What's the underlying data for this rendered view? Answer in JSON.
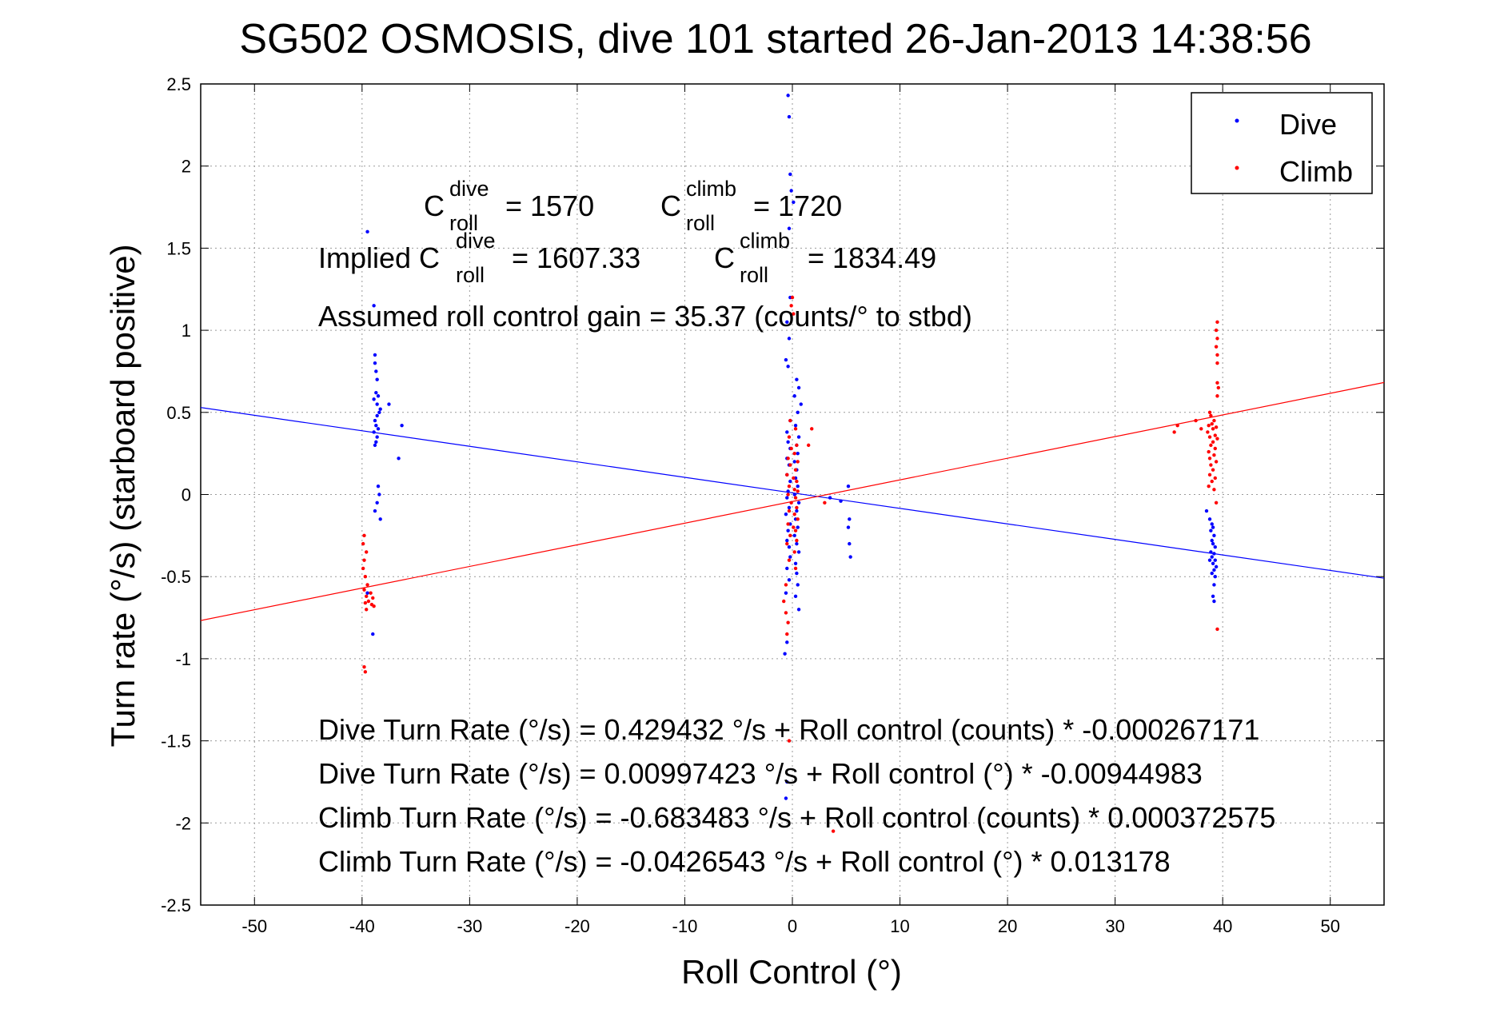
{
  "chart_data": {
    "type": "scatter",
    "title": "SG502 OSMOSIS, dive 101 started 26-Jan-2013 14:38:56",
    "xlabel": "Roll Control (°)",
    "ylabel": "Turn rate (°/s)  (starboard positive)",
    "xlim": [
      -55,
      55
    ],
    "ylim": [
      -2.5,
      2.5
    ],
    "xticks": [
      -50,
      -40,
      -30,
      -20,
      -10,
      0,
      10,
      20,
      30,
      40,
      50
    ],
    "yticks": [
      -2.5,
      -2,
      -1.5,
      -1,
      -0.5,
      0,
      0.5,
      1,
      1.5,
      2,
      2.5
    ],
    "xtick_labels": [
      "-50",
      "-40",
      "-30",
      "-20",
      "-10",
      "0",
      "10",
      "20",
      "30",
      "40",
      "50"
    ],
    "ytick_labels": [
      "-2.5",
      "-2",
      "-1.5",
      "-1",
      "-0.5",
      "0",
      "0.5",
      "1",
      "1.5",
      "2",
      "2.5"
    ],
    "grid": true,
    "legend": {
      "placement": "top-right",
      "entries": [
        "Dive",
        "Climb"
      ]
    },
    "colors": {
      "Dive": "#0000ff",
      "Climb": "#ff0000"
    },
    "series": [
      {
        "name": "Dive",
        "color": "#0000ff",
        "points": [
          [
            -39.5,
            1.6
          ],
          [
            -38.9,
            1.15
          ],
          [
            -38.8,
            0.85
          ],
          [
            -38.8,
            0.8
          ],
          [
            -38.7,
            0.75
          ],
          [
            -38.6,
            0.7
          ],
          [
            -38.7,
            0.62
          ],
          [
            -38.5,
            0.6
          ],
          [
            -38.9,
            0.58
          ],
          [
            -38.6,
            0.55
          ],
          [
            -38.3,
            0.52
          ],
          [
            -38.4,
            0.5
          ],
          [
            -38.6,
            0.48
          ],
          [
            -38.8,
            0.45
          ],
          [
            -38.7,
            0.42
          ],
          [
            -38.5,
            0.4
          ],
          [
            -38.9,
            0.38
          ],
          [
            -38.6,
            0.35
          ],
          [
            -38.7,
            0.32
          ],
          [
            -38.8,
            0.3
          ],
          [
            -37.5,
            0.55
          ],
          [
            -36.3,
            0.42
          ],
          [
            -36.6,
            0.22
          ],
          [
            -38.5,
            0.05
          ],
          [
            -38.4,
            0.0
          ],
          [
            -38.6,
            -0.05
          ],
          [
            -38.8,
            -0.1
          ],
          [
            -38.3,
            -0.15
          ],
          [
            -39.5,
            -0.6
          ],
          [
            -39.0,
            -0.85
          ],
          [
            -0.4,
            2.43
          ],
          [
            -0.3,
            2.3
          ],
          [
            -0.2,
            1.95
          ],
          [
            -0.1,
            1.85
          ],
          [
            0.1,
            1.78
          ],
          [
            -0.3,
            1.62
          ],
          [
            -0.2,
            1.2
          ],
          [
            -0.5,
            1.05
          ],
          [
            -0.3,
            0.95
          ],
          [
            -0.6,
            0.82
          ],
          [
            -0.4,
            0.78
          ],
          [
            0.4,
            0.7
          ],
          [
            0.6,
            0.65
          ],
          [
            0.2,
            0.6
          ],
          [
            0.8,
            0.55
          ],
          [
            0.5,
            0.5
          ],
          [
            -0.2,
            0.45
          ],
          [
            0.3,
            0.42
          ],
          [
            -0.5,
            0.38
          ],
          [
            0.6,
            0.35
          ],
          [
            -0.4,
            0.32
          ],
          [
            0.4,
            0.3
          ],
          [
            -0.2,
            0.28
          ],
          [
            0.5,
            0.25
          ],
          [
            -0.5,
            0.22
          ],
          [
            0.2,
            0.2
          ],
          [
            -0.3,
            0.18
          ],
          [
            0.4,
            0.15
          ],
          [
            -0.5,
            0.12
          ],
          [
            0.3,
            0.1
          ],
          [
            -0.2,
            0.08
          ],
          [
            0.5,
            0.05
          ],
          [
            -0.4,
            0.02
          ],
          [
            0.2,
            0.0
          ],
          [
            -0.5,
            -0.02
          ],
          [
            0.6,
            -0.05
          ],
          [
            -0.3,
            -0.08
          ],
          [
            0.4,
            -0.1
          ],
          [
            -0.6,
            -0.12
          ],
          [
            0.3,
            -0.15
          ],
          [
            -0.2,
            -0.18
          ],
          [
            0.5,
            -0.2
          ],
          [
            -0.4,
            -0.22
          ],
          [
            0.2,
            -0.25
          ],
          [
            -0.5,
            -0.28
          ],
          [
            0.4,
            -0.3
          ],
          [
            -0.3,
            -0.32
          ],
          [
            0.6,
            -0.35
          ],
          [
            -0.2,
            -0.38
          ],
          [
            0.3,
            -0.42
          ],
          [
            -0.5,
            -0.45
          ],
          [
            0.4,
            -0.48
          ],
          [
            -0.3,
            -0.52
          ],
          [
            0.5,
            -0.55
          ],
          [
            -0.6,
            -0.6
          ],
          [
            0.3,
            -0.62
          ],
          [
            0.6,
            -0.7
          ],
          [
            -0.5,
            -0.9
          ],
          [
            -0.7,
            -0.97
          ],
          [
            -0.5,
            -1.75
          ],
          [
            -0.6,
            -1.85
          ],
          [
            3.5,
            -0.02
          ],
          [
            4.5,
            -0.04
          ],
          [
            5.2,
            0.05
          ],
          [
            5.3,
            -0.15
          ],
          [
            5.2,
            -0.2
          ],
          [
            5.3,
            -0.3
          ],
          [
            5.4,
            -0.38
          ],
          [
            38.5,
            -0.1
          ],
          [
            38.8,
            -0.15
          ],
          [
            39.0,
            -0.18
          ],
          [
            39.1,
            -0.2
          ],
          [
            38.9,
            -0.22
          ],
          [
            39.2,
            -0.25
          ],
          [
            39.0,
            -0.28
          ],
          [
            39.1,
            -0.3
          ],
          [
            39.3,
            -0.32
          ],
          [
            38.9,
            -0.35
          ],
          [
            39.2,
            -0.36
          ],
          [
            39.0,
            -0.38
          ],
          [
            39.3,
            -0.4
          ],
          [
            39.1,
            -0.42
          ],
          [
            38.8,
            -0.4
          ],
          [
            39.4,
            -0.44
          ],
          [
            39.2,
            -0.46
          ],
          [
            39.0,
            -0.48
          ],
          [
            39.3,
            -0.5
          ],
          [
            39.2,
            -0.55
          ],
          [
            39.1,
            -0.62
          ],
          [
            39.2,
            -0.65
          ]
        ]
      },
      {
        "name": "Climb",
        "color": "#ff0000",
        "points": [
          [
            -39.8,
            -0.25
          ],
          [
            -39.9,
            -0.3
          ],
          [
            -39.6,
            -0.35
          ],
          [
            -39.8,
            -0.4
          ],
          [
            -39.9,
            -0.45
          ],
          [
            -39.7,
            -0.5
          ],
          [
            -39.5,
            -0.55
          ],
          [
            -39.8,
            -0.58
          ],
          [
            -39.2,
            -0.6
          ],
          [
            -39.6,
            -0.62
          ],
          [
            -39.0,
            -0.63
          ],
          [
            -39.4,
            -0.65
          ],
          [
            -39.7,
            -0.66
          ],
          [
            -39.1,
            -0.67
          ],
          [
            -38.9,
            -0.68
          ],
          [
            -39.6,
            -0.7
          ],
          [
            -39.8,
            -1.05
          ],
          [
            -39.7,
            -1.08
          ],
          [
            0.0,
            1.2
          ],
          [
            -0.1,
            1.15
          ],
          [
            0.1,
            1.1
          ],
          [
            -0.2,
            0.45
          ],
          [
            0.3,
            0.4
          ],
          [
            -0.3,
            0.35
          ],
          [
            0.4,
            0.3
          ],
          [
            -0.1,
            0.28
          ],
          [
            0.2,
            0.25
          ],
          [
            -0.4,
            0.22
          ],
          [
            0.5,
            0.2
          ],
          [
            -0.2,
            0.18
          ],
          [
            0.3,
            0.15
          ],
          [
            -0.5,
            0.12
          ],
          [
            0.1,
            0.1
          ],
          [
            0.4,
            0.08
          ],
          [
            -0.3,
            0.05
          ],
          [
            0.2,
            0.03
          ],
          [
            0.5,
            0.02
          ],
          [
            -0.4,
            0.0
          ],
          [
            0.3,
            -0.02
          ],
          [
            -0.1,
            -0.05
          ],
          [
            0.4,
            -0.08
          ],
          [
            -0.3,
            -0.1
          ],
          [
            0.2,
            -0.12
          ],
          [
            0.5,
            -0.15
          ],
          [
            -0.4,
            -0.18
          ],
          [
            0.1,
            -0.2
          ],
          [
            0.3,
            -0.22
          ],
          [
            -0.2,
            -0.25
          ],
          [
            0.4,
            -0.28
          ],
          [
            -0.5,
            -0.3
          ],
          [
            0.2,
            -0.35
          ],
          [
            -0.3,
            -0.4
          ],
          [
            0.3,
            -0.45
          ],
          [
            -0.6,
            -0.55
          ],
          [
            -0.8,
            -0.65
          ],
          [
            -0.6,
            -0.72
          ],
          [
            -0.4,
            -0.78
          ],
          [
            -0.5,
            -0.85
          ],
          [
            -0.3,
            -1.5
          ],
          [
            1.5,
            0.3
          ],
          [
            1.8,
            0.4
          ],
          [
            3.0,
            -0.05
          ],
          [
            3.8,
            -2.05
          ],
          [
            38.8,
            0.5
          ],
          [
            38.9,
            0.48
          ],
          [
            39.2,
            0.45
          ],
          [
            39.0,
            0.43
          ],
          [
            38.7,
            0.42
          ],
          [
            39.4,
            0.41
          ],
          [
            39.1,
            0.4
          ],
          [
            38.6,
            0.38
          ],
          [
            39.3,
            0.36
          ],
          [
            38.8,
            0.35
          ],
          [
            39.5,
            0.34
          ],
          [
            39.1,
            0.32
          ],
          [
            38.9,
            0.3
          ],
          [
            39.3,
            0.28
          ],
          [
            38.7,
            0.26
          ],
          [
            39.2,
            0.24
          ],
          [
            38.8,
            0.22
          ],
          [
            39.4,
            0.2
          ],
          [
            38.9,
            0.18
          ],
          [
            39.1,
            0.15
          ],
          [
            38.8,
            0.12
          ],
          [
            39.3,
            0.1
          ],
          [
            39.0,
            0.08
          ],
          [
            38.7,
            0.05
          ],
          [
            39.2,
            0.03
          ],
          [
            39.4,
            -0.05
          ],
          [
            39.5,
            1.05
          ],
          [
            39.4,
            1.0
          ],
          [
            39.5,
            0.95
          ],
          [
            39.4,
            0.9
          ],
          [
            39.5,
            0.85
          ],
          [
            39.5,
            0.8
          ],
          [
            39.5,
            0.68
          ],
          [
            39.6,
            0.65
          ],
          [
            39.5,
            0.6
          ],
          [
            35.8,
            0.42
          ],
          [
            35.5,
            0.38
          ],
          [
            37.5,
            0.45
          ],
          [
            38.0,
            0.4
          ],
          [
            39.5,
            -0.82
          ]
        ]
      }
    ],
    "fits": [
      {
        "name": "Dive",
        "slope_per_deg": -0.00944983,
        "intercept": 0.00997423
      },
      {
        "name": "Climb",
        "slope_per_deg": 0.013178,
        "intercept": -0.0426543
      }
    ],
    "annotations": {
      "c_dive_base": "C",
      "c_dive_sup": "dive",
      "c_dive_sub": "roll",
      "c_dive_value": "= 1570",
      "c_climb_base": "C",
      "c_climb_sup": "climb",
      "c_climb_sub": "roll",
      "c_climb_value": "= 1720",
      "implied_prefix": "Implied C",
      "implied_dive_sup": "dive",
      "implied_dive_sub": "roll",
      "implied_dive_value": "= 1607.33",
      "implied_climb_base": "C",
      "implied_climb_sup": "climb",
      "implied_climb_sub": "roll",
      "implied_climb_value": "= 1834.49",
      "gain": "Assumed roll control gain = 35.37 (counts/° to stbd)",
      "eq1": "Dive Turn Rate (°/s) = 0.429432 °/s + Roll control (counts) * -0.000267171",
      "eq2": "Dive Turn Rate (°/s) = 0.00997423 °/s + Roll control (°) * -0.00944983",
      "eq3": "Climb Turn Rate (°/s) = -0.683483 °/s + Roll control (counts) * 0.000372575",
      "eq4": "Climb Turn Rate (°/s) = -0.0426543 °/s + Roll control (°) * 0.013178"
    }
  }
}
